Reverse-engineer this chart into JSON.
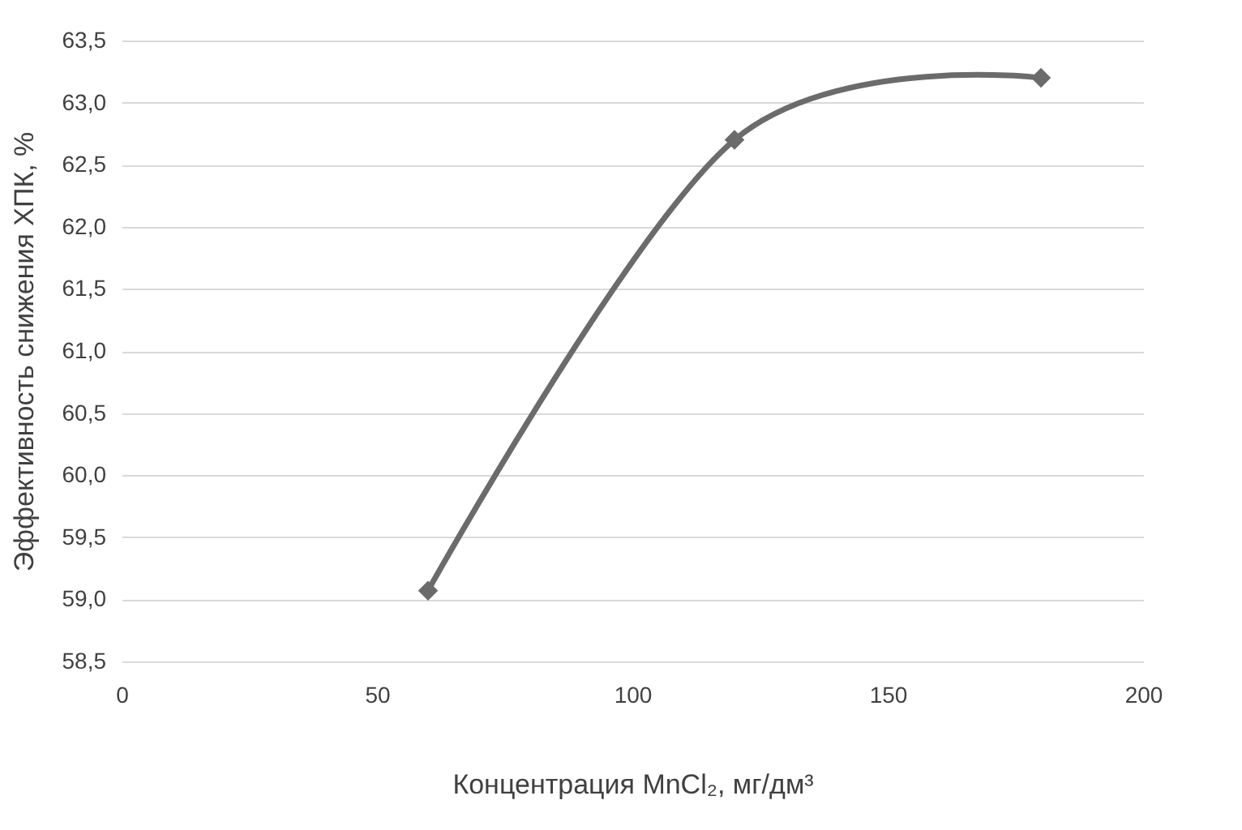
{
  "chart_data": {
    "type": "line",
    "xlabel": "Концентрация MnCl₂, мг/дм³",
    "ylabel": "Эффективность снижения ХПК, %",
    "x": [
      60,
      120,
      180
    ],
    "series": [
      {
        "color": "#6b6b6b",
        "values": [
          59.07,
          62.7,
          63.2
        ]
      }
    ],
    "xlim": [
      0,
      200
    ],
    "xticks": [
      0,
      50,
      100,
      150,
      200
    ],
    "ylim": [
      58.5,
      63.5
    ],
    "yticks": [
      {
        "value": 58.5,
        "label": "58,5"
      },
      {
        "value": 59.0,
        "label": "59,0"
      },
      {
        "value": 59.5,
        "label": "59,5"
      },
      {
        "value": 60.0,
        "label": "60,0"
      },
      {
        "value": 60.5,
        "label": "60,5"
      },
      {
        "value": 61.0,
        "label": "61,0"
      },
      {
        "value": 61.5,
        "label": "61,5"
      },
      {
        "value": 62.0,
        "label": "62,0"
      },
      {
        "value": 62.5,
        "label": "62,5"
      },
      {
        "value": 63.0,
        "label": "63,0"
      },
      {
        "value": 63.5,
        "label": "63,5"
      }
    ],
    "grid": "y",
    "marker": "diamond",
    "line_style": "solid"
  }
}
